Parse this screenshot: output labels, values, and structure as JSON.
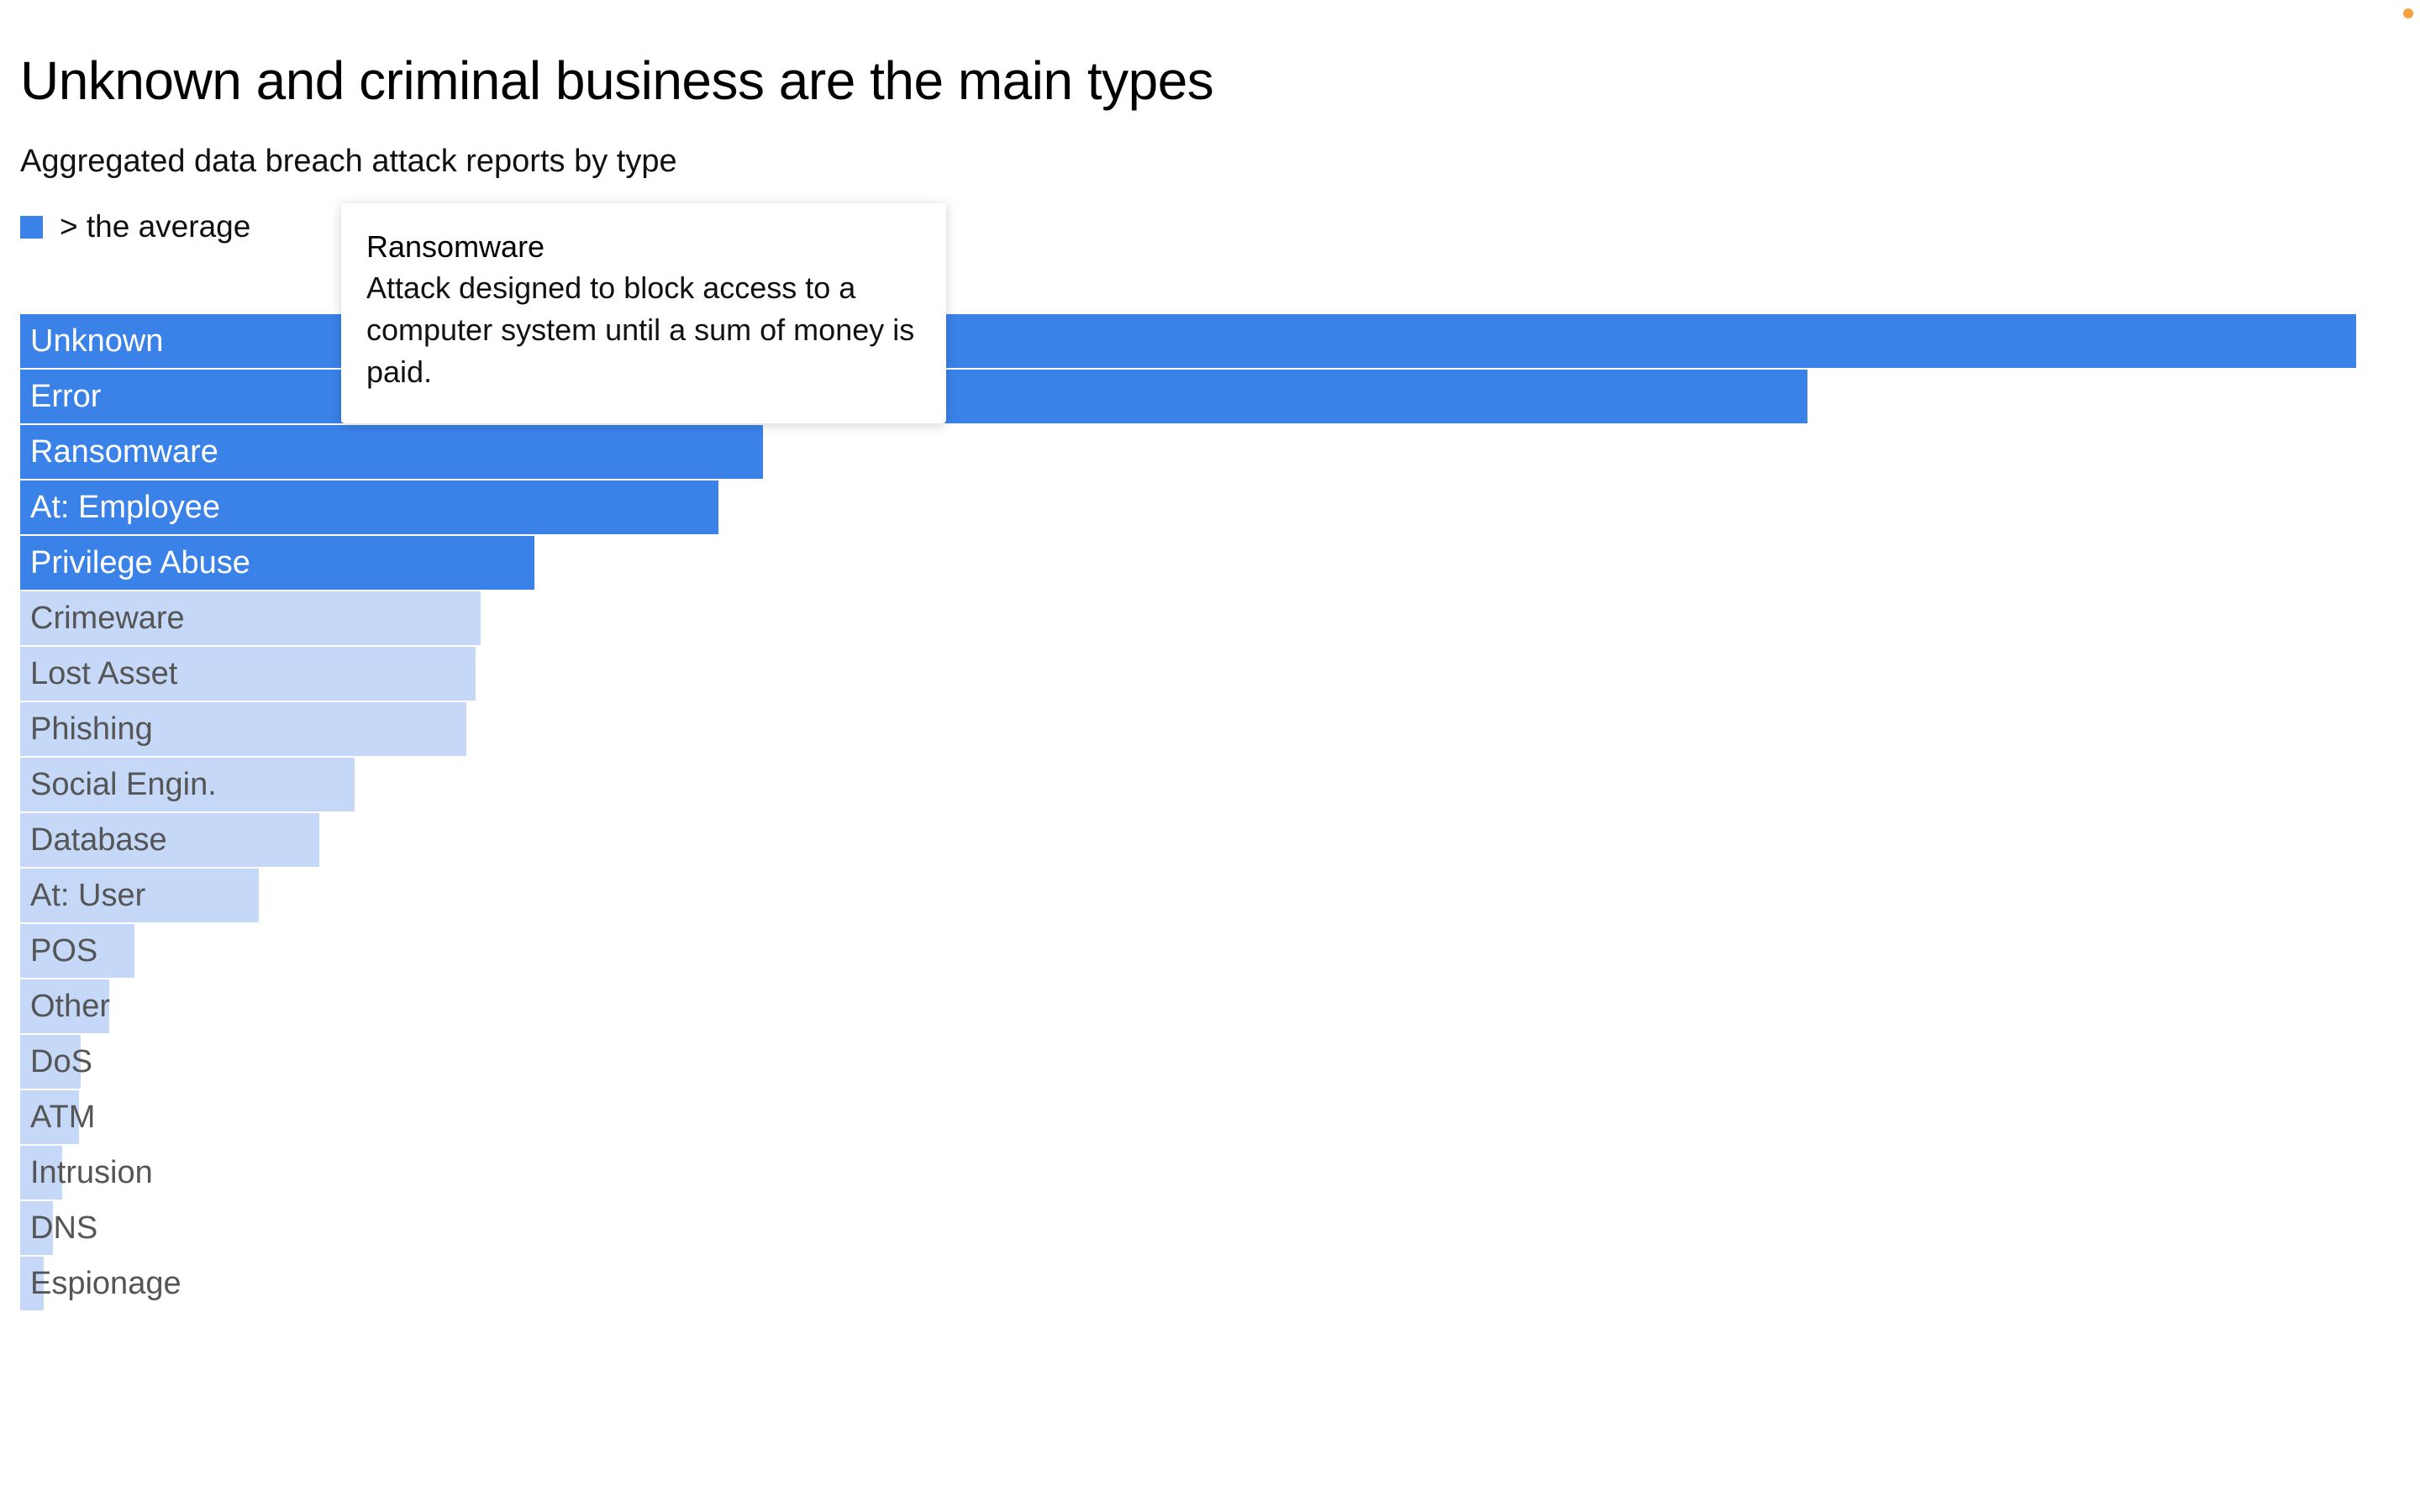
{
  "header": {
    "title": "Unknown and criminal business are the main types",
    "subtitle": "Aggregated data breach attack reports by type"
  },
  "legend": {
    "label": "> the average",
    "color": "#3b82e8"
  },
  "colors": {
    "above_average": "#3b82e8",
    "below_average": "#c5d8f7",
    "status_dot": "#f4a340"
  },
  "tooltip": {
    "title": "Ransomware",
    "body": "Attack designed to block access to a computer system until a sum of money is paid."
  },
  "chart_data": {
    "type": "bar",
    "orientation": "horizontal",
    "title": "Unknown and criminal business are the main types",
    "subtitle": "Aggregated data breach attack reports by type",
    "xlabel": "",
    "ylabel": "",
    "xlim": [
      0,
      100
    ],
    "grid": false,
    "legend": "top-left",
    "categories": [
      "Unknown",
      "Error",
      "Ransomware",
      "At: Employee",
      "Privilege Abuse",
      "Crimeware",
      "Lost Asset",
      "Phishing",
      "Social Engin.",
      "Database",
      "At: User",
      "POS",
      "Other",
      "DoS",
      "ATM",
      "Intrusion",
      "DNS",
      "Espionage"
    ],
    "values": [
      100,
      76.5,
      31.8,
      29.9,
      22.0,
      19.7,
      19.5,
      19.1,
      14.3,
      12.8,
      10.2,
      4.9,
      3.8,
      2.6,
      2.5,
      1.8,
      1.4,
      1.0
    ],
    "above_average": [
      true,
      true,
      true,
      true,
      true,
      false,
      false,
      false,
      false,
      false,
      false,
      false,
      false,
      false,
      false,
      false,
      false,
      false
    ]
  }
}
